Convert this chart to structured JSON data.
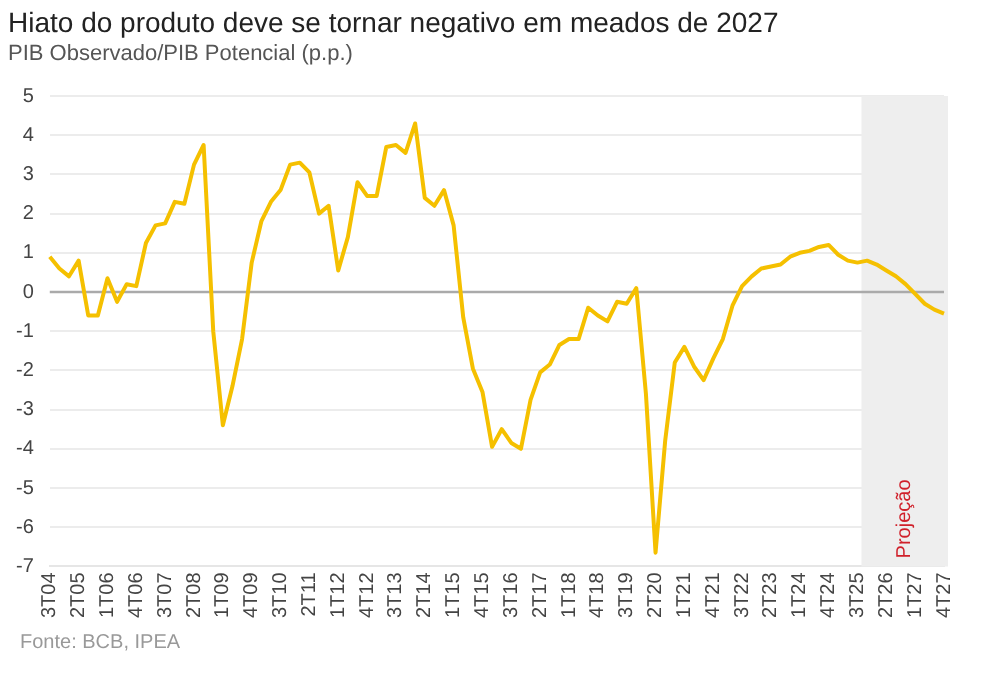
{
  "chart_data": {
    "type": "line",
    "title": "Hiato do produto deve se tornar negativo em meados de 2027",
    "subtitle": "PIB Observado/PIB Potencial (p.p.)",
    "categories": [
      "3T04",
      null,
      null,
      "2T05",
      null,
      null,
      "1T06",
      null,
      null,
      "4T06",
      null,
      null,
      "3T07",
      null,
      null,
      "2T08",
      null,
      null,
      "1T09",
      null,
      null,
      "4T09",
      null,
      null,
      "3T10",
      null,
      null,
      "2T11",
      null,
      null,
      "1T12",
      null,
      null,
      "4T12",
      null,
      null,
      "3T13",
      null,
      null,
      "2T14",
      null,
      null,
      "1T15",
      null,
      null,
      "4T15",
      null,
      null,
      "3T16",
      null,
      null,
      "2T17",
      null,
      null,
      "1T18",
      null,
      null,
      "4T18",
      null,
      null,
      "3T19",
      null,
      null,
      "2T20",
      null,
      null,
      "1T21",
      null,
      null,
      "4T21",
      null,
      null,
      "3T22",
      null,
      null,
      "2T23",
      null,
      null,
      "1T24",
      null,
      null,
      "4T24",
      null,
      null,
      "3T25",
      null,
      null,
      "2T26",
      null,
      null,
      "1T27",
      null,
      null,
      "4T27"
    ],
    "series": [
      {
        "color": "#f5c000",
        "values": [
          0.9,
          0.6,
          0.4,
          0.8,
          -0.6,
          -0.6,
          0.35,
          -0.25,
          0.2,
          0.15,
          1.25,
          1.7,
          1.75,
          2.3,
          2.25,
          3.25,
          3.75,
          -1.0,
          -3.4,
          -2.4,
          -1.2,
          0.75,
          1.8,
          2.3,
          2.6,
          3.25,
          3.3,
          3.05,
          2.0,
          2.2,
          0.55,
          1.4,
          2.8,
          2.45,
          2.45,
          3.7,
          3.75,
          3.55,
          4.3,
          2.4,
          2.2,
          2.6,
          1.7,
          -0.65,
          -1.95,
          -2.55,
          -3.95,
          -3.5,
          -3.85,
          -4.0,
          -2.75,
          -2.05,
          -1.85,
          -1.35,
          -1.2,
          -1.2,
          -0.4,
          -0.6,
          -0.75,
          -0.25,
          -0.3,
          0.1,
          -2.6,
          -6.65,
          -3.8,
          -1.8,
          -1.4,
          -1.9,
          -2.25,
          -1.7,
          -1.2,
          -0.35,
          0.15,
          0.4,
          0.6,
          0.65,
          0.7,
          0.9,
          1.0,
          1.05,
          1.15,
          1.2,
          0.95,
          0.8,
          0.75,
          0.8,
          0.7,
          0.55,
          0.4,
          0.2,
          -0.05,
          -0.3,
          -0.45,
          -0.55
        ]
      }
    ],
    "ylim": [
      -7,
      5
    ],
    "yticks": [
      -7,
      -6,
      -5,
      -4,
      -3,
      -2,
      -1,
      0,
      1,
      2,
      3,
      4,
      5
    ],
    "grid": "y",
    "marker": "none",
    "line_style": "solid",
    "legend": false,
    "ref_lines": [
      {
        "axis": "y",
        "value": 0,
        "color": "#aaaaaa"
      }
    ],
    "bands": [
      {
        "axis": "x",
        "from": "3T25",
        "to": "4T27",
        "label": "Projeção",
        "color": "#eeeeee"
      }
    ],
    "annotations": [
      "Fonte: BCB, IPEA"
    ]
  }
}
